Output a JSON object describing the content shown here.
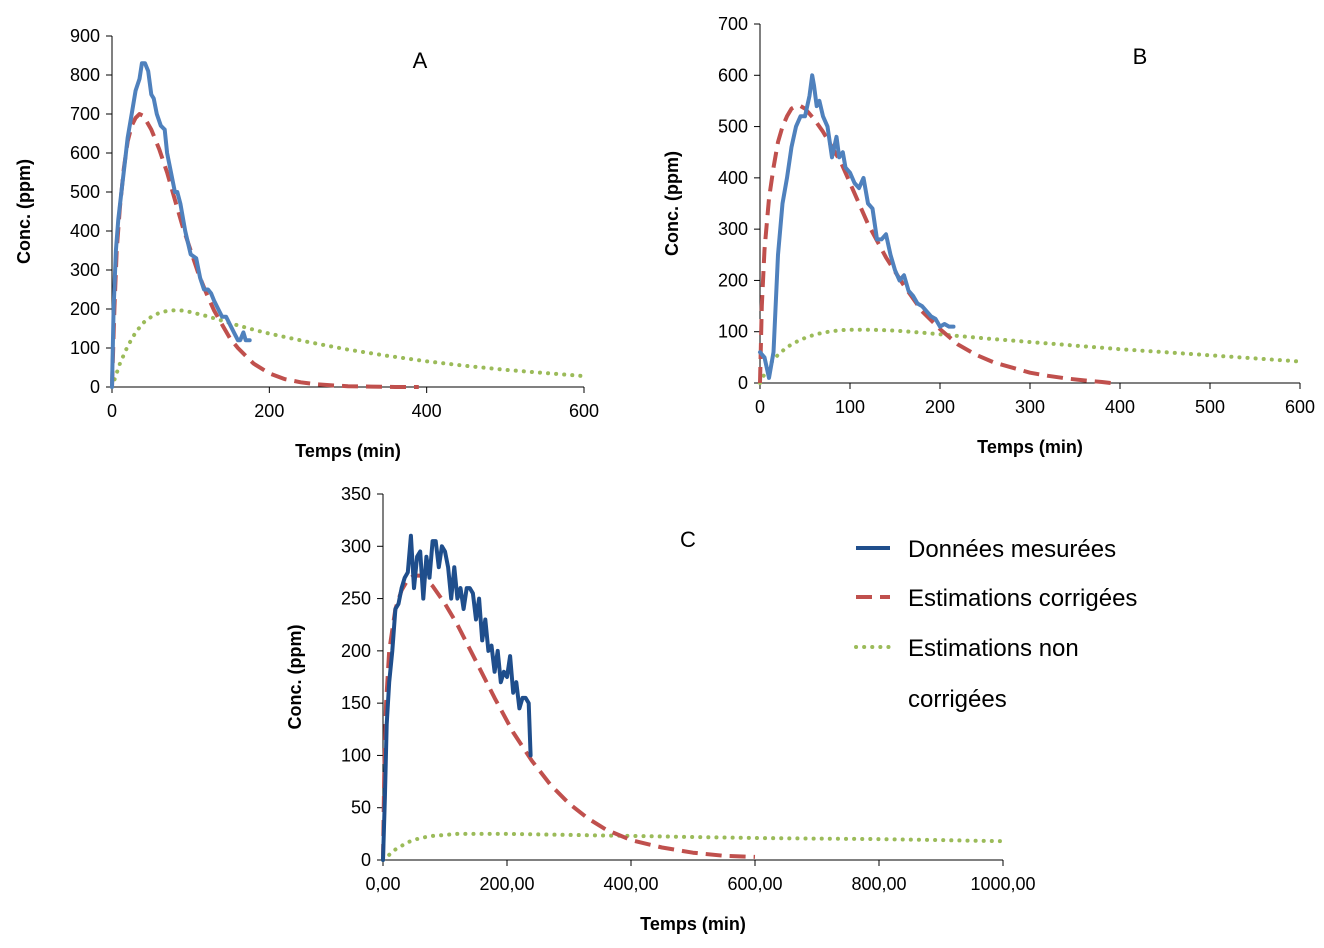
{
  "legend": {
    "entries": [
      {
        "series": "measured",
        "label_lines": [
          "Données mesurées"
        ]
      },
      {
        "series": "corrected",
        "label_lines": [
          "Estimations corrigées"
        ]
      },
      {
        "series": "uncorrected",
        "label_lines": [
          "Estimations non",
          "corrigées"
        ]
      }
    ]
  },
  "colors": {
    "measured": "#4f81bd",
    "measured_dark": "#1f4e8c",
    "corrected": "#c0504d",
    "uncorrected": "#9bbb59",
    "axis": "#000000"
  },
  "chart_data": [
    {
      "type": "line",
      "panel": "A",
      "xlabel": "Temps (min)",
      "ylabel": "Conc. (ppm)",
      "xlim": [
        0,
        600
      ],
      "ylim": [
        0,
        900
      ],
      "xticks": [
        0,
        200,
        400,
        600
      ],
      "xtick_labels": [
        "0",
        "200",
        "400",
        "600"
      ],
      "yticks": [
        0,
        100,
        200,
        300,
        400,
        500,
        600,
        700,
        800,
        900
      ],
      "ytick_labels": [
        "0",
        "100",
        "200",
        "300",
        "400",
        "500",
        "600",
        "700",
        "800",
        "900"
      ],
      "series": [
        {
          "name": "Données mesurées",
          "key": "measured",
          "style": "solid",
          "x": [
            0,
            2,
            5,
            8,
            12,
            16,
            20,
            25,
            30,
            35,
            38,
            42,
            46,
            50,
            53,
            57,
            62,
            67,
            70,
            75,
            80,
            83,
            87,
            93,
            100,
            107,
            112,
            117,
            122,
            126,
            130,
            135,
            140,
            145,
            150,
            155,
            160,
            163,
            167,
            170,
            175
          ],
          "y": [
            0,
            200,
            350,
            430,
            500,
            570,
            640,
            700,
            760,
            790,
            830,
            830,
            810,
            750,
            740,
            700,
            670,
            660,
            600,
            550,
            500,
            500,
            470,
            400,
            340,
            330,
            280,
            250,
            250,
            240,
            220,
            200,
            180,
            180,
            160,
            140,
            120,
            120,
            140,
            120,
            120
          ]
        },
        {
          "name": "Estimations corrigées",
          "key": "corrected",
          "style": "dashed",
          "x": [
            0,
            3,
            6,
            10,
            15,
            20,
            25,
            30,
            35,
            40,
            50,
            60,
            70,
            80,
            90,
            100,
            110,
            120,
            130,
            140,
            150,
            160,
            170,
            180,
            200,
            220,
            240,
            260,
            280,
            300,
            330,
            360,
            390
          ],
          "y": [
            0,
            200,
            350,
            460,
            560,
            630,
            670,
            690,
            700,
            695,
            660,
            610,
            550,
            480,
            410,
            350,
            290,
            240,
            195,
            160,
            125,
            100,
            80,
            60,
            35,
            20,
            12,
            7,
            4,
            2,
            1,
            0,
            0
          ]
        },
        {
          "name": "Estimations non corrigées",
          "key": "uncorrected",
          "style": "dotted",
          "x": [
            0,
            10,
            20,
            30,
            40,
            50,
            60,
            70,
            80,
            90,
            100,
            120,
            140,
            160,
            180,
            200,
            250,
            300,
            350,
            400,
            450,
            500,
            550,
            600
          ],
          "y": [
            0,
            60,
            105,
            140,
            165,
            180,
            190,
            195,
            197,
            196,
            192,
            182,
            170,
            158,
            147,
            137,
            115,
            96,
            80,
            66,
            54,
            44,
            36,
            28
          ]
        }
      ]
    },
    {
      "type": "line",
      "panel": "B",
      "xlabel": "Temps (min)",
      "ylabel": "Conc. (ppm)",
      "xlim": [
        0,
        600
      ],
      "ylim": [
        0,
        700
      ],
      "xticks": [
        0,
        100,
        200,
        300,
        400,
        500,
        600
      ],
      "xtick_labels": [
        "0",
        "100",
        "200",
        "300",
        "400",
        "500",
        "600"
      ],
      "yticks": [
        0,
        100,
        200,
        300,
        400,
        500,
        600,
        700
      ],
      "ytick_labels": [
        "0",
        "100",
        "200",
        "300",
        "400",
        "500",
        "600",
        "700"
      ],
      "series": [
        {
          "name": "Données mesurées",
          "key": "measured",
          "style": "solid",
          "x": [
            0,
            5,
            10,
            15,
            20,
            25,
            30,
            35,
            40,
            45,
            50,
            55,
            58,
            60,
            63,
            66,
            70,
            75,
            80,
            85,
            88,
            92,
            95,
            100,
            105,
            110,
            115,
            120,
            125,
            130,
            135,
            140,
            145,
            150,
            155,
            160,
            165,
            170,
            175,
            180,
            185,
            190,
            195,
            200,
            205,
            210,
            215
          ],
          "y": [
            60,
            50,
            10,
            60,
            250,
            350,
            400,
            460,
            500,
            520,
            520,
            560,
            600,
            580,
            540,
            550,
            520,
            500,
            440,
            480,
            440,
            450,
            420,
            410,
            390,
            380,
            400,
            350,
            340,
            280,
            280,
            290,
            250,
            220,
            200,
            210,
            180,
            170,
            155,
            150,
            140,
            130,
            125,
            110,
            115,
            110,
            110
          ]
        },
        {
          "name": "Estimations corrigées",
          "key": "corrected",
          "style": "dashed",
          "x": [
            0,
            2,
            5,
            10,
            15,
            20,
            25,
            30,
            35,
            40,
            45,
            50,
            60,
            70,
            80,
            90,
            100,
            120,
            140,
            160,
            180,
            200,
            220,
            240,
            260,
            280,
            300,
            320,
            340,
            360,
            380,
            390
          ],
          "y": [
            0,
            150,
            260,
            360,
            420,
            470,
            500,
            520,
            535,
            540,
            540,
            535,
            515,
            490,
            460,
            430,
            390,
            310,
            245,
            190,
            140,
            105,
            75,
            55,
            40,
            30,
            20,
            14,
            9,
            5,
            2,
            0
          ]
        },
        {
          "name": "Estimations non corrigées",
          "key": "uncorrected",
          "style": "dotted",
          "x": [
            0,
            10,
            20,
            30,
            40,
            50,
            60,
            70,
            80,
            90,
            100,
            120,
            140,
            160,
            180,
            200,
            250,
            300,
            350,
            400,
            450,
            500,
            550,
            600
          ],
          "y": [
            0,
            35,
            55,
            70,
            80,
            88,
            94,
            98,
            101,
            103,
            104,
            104,
            103,
            101,
            98,
            95,
            87,
            80,
            73,
            66,
            60,
            54,
            48,
            42
          ]
        }
      ]
    },
    {
      "type": "line",
      "panel": "C",
      "xlabel": "Temps (min)",
      "ylabel": "Conc. (ppm)",
      "xlim": [
        0,
        1000
      ],
      "ylim": [
        0,
        350
      ],
      "xticks": [
        0,
        200,
        400,
        600,
        800,
        1000
      ],
      "xtick_labels": [
        "0,00",
        "200,00",
        "400,00",
        "600,00",
        "800,00",
        "1000,00"
      ],
      "yticks": [
        0,
        50,
        100,
        150,
        200,
        250,
        300,
        350
      ],
      "ytick_labels": [
        "0",
        "50",
        "100",
        "150",
        "200",
        "250",
        "300",
        "350"
      ],
      "series": [
        {
          "name": "Données mesurées",
          "key": "measured_dark",
          "style": "solid",
          "x": [
            0,
            3,
            6,
            10,
            15,
            20,
            25,
            30,
            35,
            40,
            45,
            50,
            55,
            60,
            65,
            70,
            75,
            80,
            85,
            90,
            95,
            100,
            105,
            110,
            115,
            120,
            125,
            130,
            135,
            140,
            145,
            150,
            155,
            160,
            165,
            170,
            175,
            180,
            185,
            190,
            195,
            200,
            205,
            210,
            215,
            220,
            225,
            230,
            235,
            238
          ],
          "y": [
            0,
            60,
            130,
            170,
            200,
            240,
            245,
            260,
            270,
            275,
            310,
            260,
            290,
            295,
            250,
            290,
            270,
            305,
            305,
            280,
            300,
            295,
            280,
            250,
            280,
            250,
            260,
            240,
            260,
            260,
            255,
            230,
            250,
            210,
            230,
            200,
            205,
            180,
            200,
            170,
            180,
            175,
            195,
            160,
            170,
            145,
            155,
            155,
            150,
            100
          ]
        },
        {
          "name": "Estimations corrigées",
          "key": "corrected",
          "style": "dashed",
          "x": [
            0,
            2,
            5,
            10,
            20,
            30,
            40,
            50,
            60,
            70,
            80,
            100,
            120,
            150,
            180,
            210,
            240,
            270,
            300,
            330,
            360,
            400,
            450,
            500,
            550,
            600
          ],
          "y": [
            0,
            80,
            150,
            200,
            240,
            258,
            268,
            272,
            272,
            268,
            262,
            245,
            225,
            190,
            155,
            122,
            95,
            72,
            54,
            40,
            29,
            19,
            12,
            7,
            4,
            3
          ]
        },
        {
          "name": "Estimations non corrigées",
          "key": "uncorrected",
          "style": "dotted",
          "x": [
            0,
            10,
            20,
            40,
            60,
            80,
            100,
            120,
            150,
            200,
            250,
            300,
            400,
            500,
            600,
            700,
            800,
            900,
            1000
          ],
          "y": [
            0,
            5,
            10,
            17,
            21,
            23,
            24,
            25,
            25,
            25,
            24.5,
            24,
            23,
            22,
            21,
            20.5,
            20,
            19,
            18
          ]
        }
      ]
    }
  ]
}
